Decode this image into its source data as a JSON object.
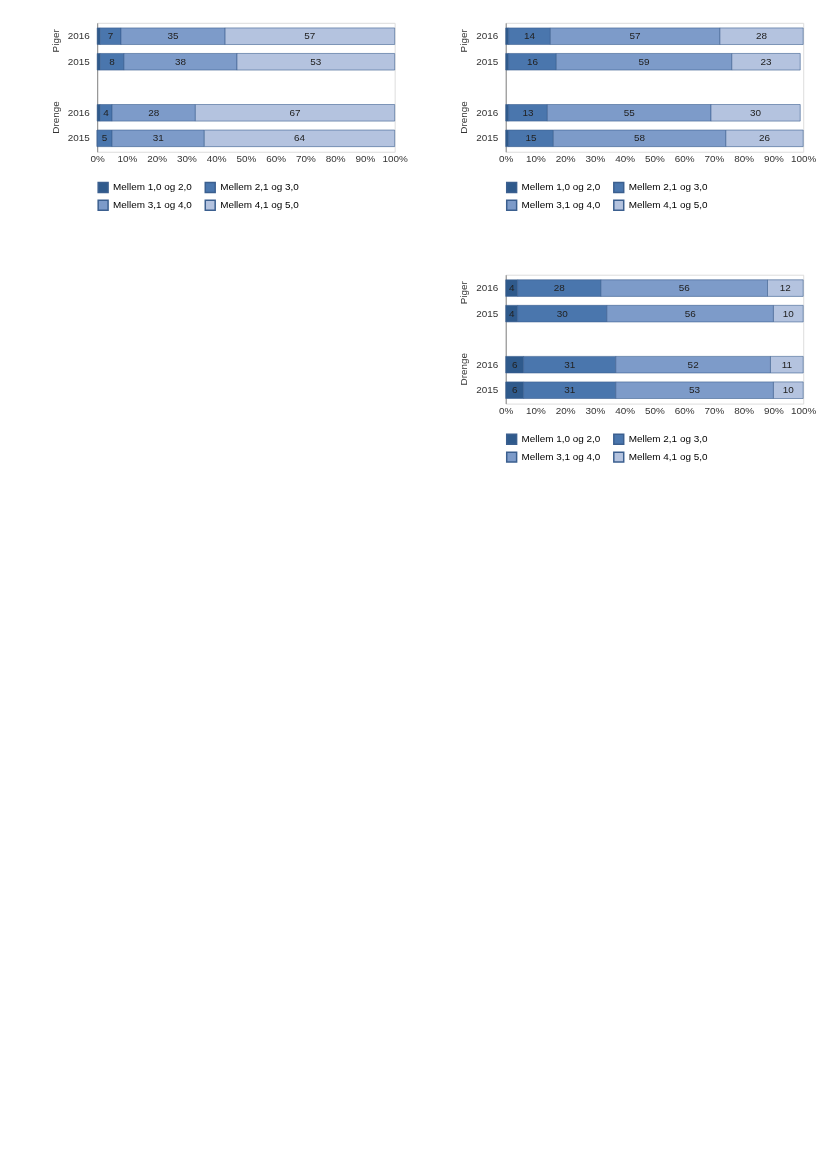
{
  "chart_data": [
    {
      "type": "bar",
      "orientation": "horizontal",
      "stacked": true,
      "categories": [
        "2016",
        "2015",
        null,
        "2016",
        "2015"
      ],
      "annotations": [
        "Piger",
        "Drenge"
      ],
      "xlim": [
        0,
        100
      ],
      "xticks": [
        {
          "value": 0,
          "label": "0%"
        },
        {
          "value": 10,
          "label": "10%"
        },
        {
          "value": 20,
          "label": "20%"
        },
        {
          "value": 30,
          "label": "30%"
        },
        {
          "value": 40,
          "label": "40%"
        },
        {
          "value": 50,
          "label": "50%"
        },
        {
          "value": 60,
          "label": "60%"
        },
        {
          "value": 70,
          "label": "70%"
        },
        {
          "value": 80,
          "label": "80%"
        },
        {
          "value": 90,
          "label": "90%"
        },
        {
          "value": 100,
          "label": "100%"
        }
      ],
      "legend": "bottom",
      "series": [
        {
          "name": "Mellem 1,0 og 2,0",
          "color": "#2f5a8c",
          "values": [
            1,
            1,
            null,
            1,
            1
          ],
          "value_labels": [
            null,
            null,
            null,
            null,
            null
          ]
        },
        {
          "name": "Mellem 2,1 og 3,0",
          "color": "#4a76ad",
          "values": [
            14,
            16,
            null,
            13,
            15
          ],
          "value_labels": [
            "14",
            "16",
            null,
            "13",
            "15"
          ]
        },
        {
          "name": "Mellem 3,1 og 4,0",
          "color": "#7d9bc9",
          "values": [
            57,
            59,
            null,
            55,
            58
          ],
          "value_labels": [
            "57",
            "59",
            null,
            "55",
            "58"
          ]
        },
        {
          "name": "Mellem 4,1 og 5,0",
          "color": "#b4c3df",
          "values": [
            28,
            23,
            null,
            30,
            26
          ],
          "value_labels": [
            "28",
            "23",
            null,
            "30",
            "26"
          ]
        }
      ]
    },
    {
      "type": "bar",
      "orientation": "horizontal",
      "stacked": true,
      "categories": [
        "2016",
        "2015",
        null,
        "2016",
        "2015"
      ],
      "annotations": [
        "Piger",
        "Drenge"
      ],
      "xlim": [
        0,
        100
      ],
      "xticks": [
        {
          "value": 0,
          "label": "0%"
        },
        {
          "value": 10,
          "label": "10%"
        },
        {
          "value": 20,
          "label": "20%"
        },
        {
          "value": 30,
          "label": "30%"
        },
        {
          "value": 40,
          "label": "40%"
        },
        {
          "value": 50,
          "label": "50%"
        },
        {
          "value": 60,
          "label": "60%"
        },
        {
          "value": 70,
          "label": "70%"
        },
        {
          "value": 80,
          "label": "80%"
        },
        {
          "value": 90,
          "label": "90%"
        },
        {
          "value": 100,
          "label": "100%"
        }
      ],
      "legend": "bottom",
      "series": [
        {
          "name": "Mellem 1,0 og 2,0",
          "color": "#2f5a8c",
          "values": [
            1,
            1,
            null,
            1,
            0
          ],
          "value_labels": [
            null,
            null,
            null,
            null,
            null
          ]
        },
        {
          "name": "Mellem 2,1 og 3,0",
          "color": "#4a76ad",
          "values": [
            7,
            8,
            null,
            4,
            5
          ],
          "value_labels": [
            "7",
            "8",
            null,
            "4",
            "5"
          ]
        },
        {
          "name": "Mellem 3,1 og 4,0",
          "color": "#7d9bc9",
          "values": [
            35,
            38,
            null,
            28,
            31
          ],
          "value_labels": [
            "35",
            "38",
            null,
            "28",
            "31"
          ]
        },
        {
          "name": "Mellem 4,1 og 5,0",
          "color": "#b4c3df",
          "values": [
            57,
            53,
            null,
            67,
            64
          ],
          "value_labels": [
            "57",
            "53",
            null,
            "67",
            "64"
          ]
        }
      ]
    },
    {
      "type": "bar",
      "orientation": "horizontal",
      "stacked": true,
      "categories": [
        "2016",
        "2015",
        null,
        "2016",
        "2015"
      ],
      "annotations": [
        "Piger",
        "Drenge"
      ],
      "xlim": [
        0,
        100
      ],
      "xticks": [
        {
          "value": 0,
          "label": "0%"
        },
        {
          "value": 10,
          "label": "10%"
        },
        {
          "value": 20,
          "label": "20%"
        },
        {
          "value": 30,
          "label": "30%"
        },
        {
          "value": 40,
          "label": "40%"
        },
        {
          "value": 50,
          "label": "50%"
        },
        {
          "value": 60,
          "label": "60%"
        },
        {
          "value": 70,
          "label": "70%"
        },
        {
          "value": 80,
          "label": "80%"
        },
        {
          "value": 90,
          "label": "90%"
        },
        {
          "value": 100,
          "label": "100%"
        }
      ],
      "legend": "bottom",
      "series": [
        {
          "name": "Mellem 1,0 og 2,0",
          "color": "#2f5a8c",
          "values": [
            4,
            4,
            null,
            6,
            6
          ],
          "value_labels": [
            "4",
            "4",
            null,
            "6",
            "6"
          ]
        },
        {
          "name": "Mellem 2,1 og 3,0",
          "color": "#4a76ad",
          "values": [
            28,
            30,
            null,
            31,
            31
          ],
          "value_labels": [
            "28",
            "30",
            null,
            "31",
            "31"
          ]
        },
        {
          "name": "Mellem 3,1 og 4,0",
          "color": "#7d9bc9",
          "values": [
            56,
            56,
            null,
            52,
            53
          ],
          "value_labels": [
            "56",
            "56",
            null,
            "52",
            "53"
          ]
        },
        {
          "name": "Mellem 4,1 og 5,0",
          "color": "#b4c3df",
          "values": [
            12,
            10,
            null,
            11,
            10
          ],
          "value_labels": [
            "12",
            "10",
            null,
            "11",
            "10"
          ]
        }
      ]
    }
  ]
}
